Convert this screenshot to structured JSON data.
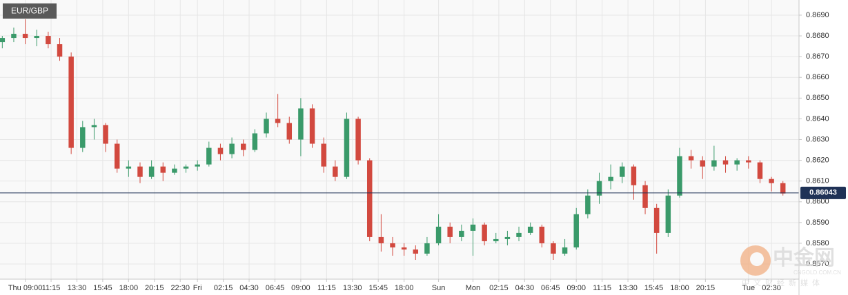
{
  "chart_data": {
    "type": "candlestick",
    "title": "EUR/GBP",
    "x": [
      -2,
      -1,
      0,
      1,
      2,
      3,
      4,
      5,
      6,
      7,
      8,
      9,
      10,
      11,
      12,
      13,
      14,
      15,
      16,
      17,
      18,
      19,
      20,
      21,
      22,
      23,
      24,
      25,
      26,
      27,
      28,
      29,
      30,
      31,
      32,
      33,
      34,
      35,
      36,
      37,
      38,
      39,
      40,
      41,
      42,
      43,
      44,
      45,
      46,
      47,
      48,
      49,
      50,
      51,
      52,
      53,
      54,
      55,
      56,
      57,
      58,
      59,
      60,
      61,
      62,
      63,
      64,
      65,
      66
    ],
    "open": [
      0.8677,
      0.8679,
      0.8681,
      0.8679,
      0.868,
      0.8676,
      0.867,
      0.8626,
      0.8636,
      0.8637,
      0.8628,
      0.8616,
      0.8617,
      0.8612,
      0.8617,
      0.8614,
      0.8616,
      0.8617,
      0.8618,
      0.8626,
      0.8623,
      0.8628,
      0.8625,
      0.8633,
      0.864,
      0.8638,
      0.863,
      0.8645,
      0.8628,
      0.8617,
      0.8612,
      0.864,
      0.862,
      0.8583,
      0.858,
      0.8578,
      0.8577,
      0.8575,
      0.858,
      0.8588,
      0.8583,
      0.8586,
      0.8589,
      0.8581,
      0.8582,
      0.8583,
      0.8585,
      0.8588,
      0.858,
      0.8575,
      0.8578,
      0.8594,
      0.8603,
      0.861,
      0.8612,
      0.8617,
      0.8608,
      0.8597,
      0.8585,
      0.8603,
      0.8622,
      0.862,
      0.8617,
      0.862,
      0.8618,
      0.862,
      0.8619,
      0.8611,
      0.8609
    ],
    "high": [
      0.868,
      0.8684,
      0.8688,
      0.8683,
      0.8682,
      0.8679,
      0.8672,
      0.8639,
      0.864,
      0.8638,
      0.863,
      0.862,
      0.8619,
      0.862,
      0.8619,
      0.8618,
      0.8618,
      0.862,
      0.8629,
      0.8628,
      0.8631,
      0.863,
      0.8635,
      0.8643,
      0.8652,
      0.8641,
      0.865,
      0.8647,
      0.8631,
      0.862,
      0.8643,
      0.8641,
      0.8621,
      0.8594,
      0.8583,
      0.858,
      0.8579,
      0.8583,
      0.8594,
      0.859,
      0.8589,
      0.8592,
      0.859,
      0.8585,
      0.8586,
      0.8588,
      0.859,
      0.8589,
      0.8581,
      0.8582,
      0.8597,
      0.8606,
      0.8614,
      0.8618,
      0.8619,
      0.8618,
      0.861,
      0.8599,
      0.8606,
      0.8626,
      0.8625,
      0.8622,
      0.8627,
      0.8622,
      0.8621,
      0.8622,
      0.862,
      0.8612,
      0.861
    ],
    "low": [
      0.8674,
      0.8677,
      0.8676,
      0.8675,
      0.8674,
      0.8668,
      0.8623,
      0.8624,
      0.863,
      0.8624,
      0.8614,
      0.8612,
      0.8609,
      0.8611,
      0.861,
      0.8613,
      0.8614,
      0.8615,
      0.8617,
      0.862,
      0.8621,
      0.8622,
      0.8624,
      0.8631,
      0.8636,
      0.8628,
      0.8622,
      0.8626,
      0.8614,
      0.861,
      0.8611,
      0.8618,
      0.8581,
      0.8576,
      0.8574,
      0.8574,
      0.8572,
      0.8574,
      0.8579,
      0.858,
      0.8581,
      0.8574,
      0.8579,
      0.858,
      0.8579,
      0.8581,
      0.8584,
      0.8578,
      0.8572,
      0.8574,
      0.8577,
      0.8592,
      0.8599,
      0.8606,
      0.8609,
      0.8601,
      0.8594,
      0.8575,
      0.8583,
      0.8602,
      0.8616,
      0.8611,
      0.8615,
      0.8614,
      0.8615,
      0.8616,
      0.8609,
      0.8605,
      0.8603
    ],
    "close": [
      0.8679,
      0.8681,
      0.8679,
      0.868,
      0.8676,
      0.867,
      0.8626,
      0.8636,
      0.8637,
      0.8628,
      0.8616,
      0.8617,
      0.8612,
      0.8617,
      0.8614,
      0.8616,
      0.8617,
      0.8618,
      0.8626,
      0.8623,
      0.8628,
      0.8625,
      0.8633,
      0.864,
      0.8638,
      0.863,
      0.8645,
      0.8628,
      0.8617,
      0.8612,
      0.864,
      0.862,
      0.8583,
      0.858,
      0.8578,
      0.8577,
      0.8575,
      0.858,
      0.8588,
      0.8583,
      0.8586,
      0.8589,
      0.8581,
      0.8582,
      0.8583,
      0.8585,
      0.8588,
      0.858,
      0.8575,
      0.8578,
      0.8594,
      0.8603,
      0.861,
      0.8612,
      0.8617,
      0.8608,
      0.8597,
      0.8585,
      0.8603,
      0.8622,
      0.862,
      0.8617,
      0.862,
      0.8618,
      0.862,
      0.8619,
      0.8611,
      0.8609,
      0.8604
    ],
    "up_color": "#3a9a6a",
    "down_color": "#d2493f",
    "current_price": 0.86043,
    "current_price_color": "#1f3256",
    "xlim": [
      -2.2,
      67.4
    ],
    "ylim": [
      0.85627,
      0.86973
    ],
    "xticks": [
      {
        "value": 0,
        "label": "Thu 09:00"
      },
      {
        "value": 2.25,
        "label": "11:15"
      },
      {
        "value": 4.5,
        "label": "13:30"
      },
      {
        "value": 6.75,
        "label": "15:45"
      },
      {
        "value": 9,
        "label": "18:00"
      },
      {
        "value": 11.25,
        "label": "20:15"
      },
      {
        "value": 13.5,
        "label": "22:30"
      },
      {
        "value": 15,
        "label": "Fri"
      },
      {
        "value": 17.25,
        "label": "02:15"
      },
      {
        "value": 19.5,
        "label": "04:30"
      },
      {
        "value": 21.75,
        "label": "06:45"
      },
      {
        "value": 24,
        "label": "09:00"
      },
      {
        "value": 26.25,
        "label": "11:15"
      },
      {
        "value": 28.5,
        "label": "13:30"
      },
      {
        "value": 30.75,
        "label": "15:45"
      },
      {
        "value": 33,
        "label": "18:00"
      },
      {
        "value": 36,
        "label": "Sun"
      },
      {
        "value": 39,
        "label": "Mon"
      },
      {
        "value": 41.25,
        "label": "02:15"
      },
      {
        "value": 43.5,
        "label": "04:30"
      },
      {
        "value": 45.75,
        "label": "06:45"
      },
      {
        "value": 48,
        "label": "09:00"
      },
      {
        "value": 50.25,
        "label": "11:15"
      },
      {
        "value": 52.5,
        "label": "13:30"
      },
      {
        "value": 54.75,
        "label": "15:45"
      },
      {
        "value": 57,
        "label": "18:00"
      },
      {
        "value": 59.25,
        "label": "20:15"
      },
      {
        "value": 63,
        "label": "Tue"
      },
      {
        "value": 65,
        "label": "02:30"
      }
    ],
    "yticks": [
      {
        "value": 0.869,
        "label": "0.8690"
      },
      {
        "value": 0.868,
        "label": "0.8680"
      },
      {
        "value": 0.867,
        "label": "0.8670"
      },
      {
        "value": 0.866,
        "label": "0.8660"
      },
      {
        "value": 0.865,
        "label": "0.8650"
      },
      {
        "value": 0.864,
        "label": "0.8640"
      },
      {
        "value": 0.863,
        "label": "0.8630"
      },
      {
        "value": 0.862,
        "label": "0.8620"
      },
      {
        "value": 0.861,
        "label": "0.8610"
      },
      {
        "value": 0.86,
        "label": "0.8600"
      },
      {
        "value": 0.859,
        "label": "0.8590"
      },
      {
        "value": 0.858,
        "label": "0.8580"
      },
      {
        "value": 0.857,
        "label": "0.8570"
      }
    ],
    "grid": true,
    "watermark": {
      "name": "中金网",
      "domain": "CNGOLD.COM.CN",
      "slogan": "中文财经新媒体"
    }
  }
}
